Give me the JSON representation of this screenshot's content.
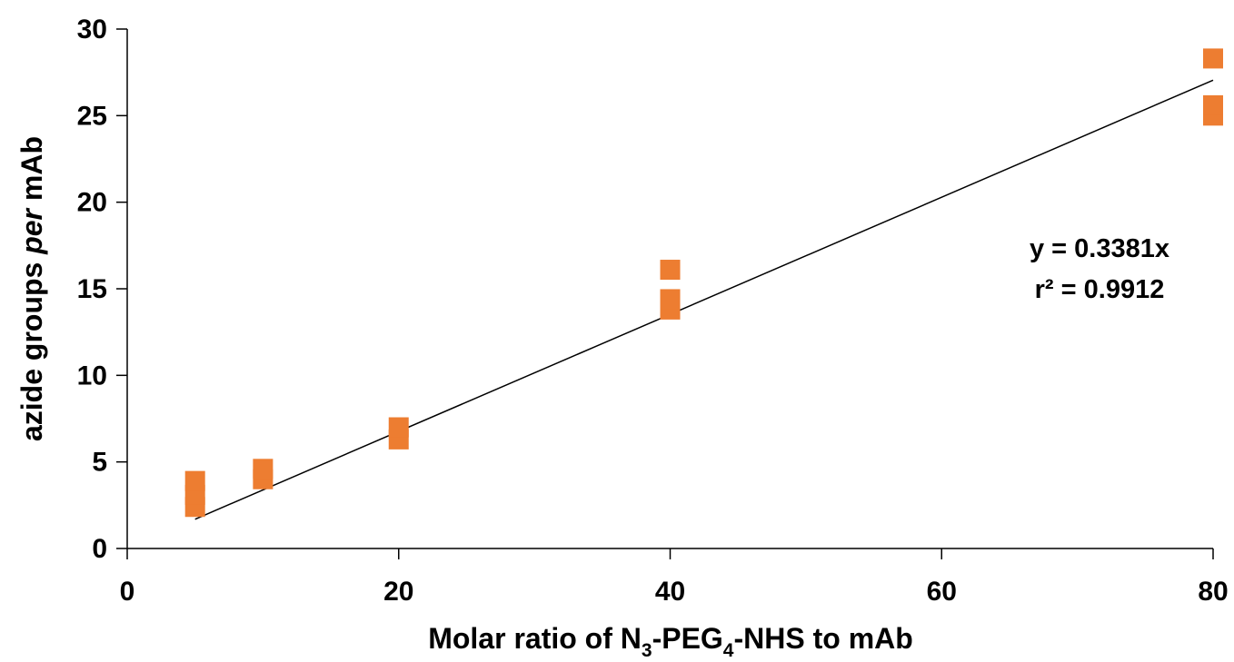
{
  "chart_data": {
    "type": "scatter",
    "title": "",
    "xlabel_parts": [
      "Molar ratio of N",
      "3",
      "-PEG",
      "4",
      "-NHS to mAb"
    ],
    "ylabel_parts": [
      "azide groups ",
      "per",
      " mAb"
    ],
    "xlim": [
      0,
      80
    ],
    "ylim": [
      0,
      30
    ],
    "x_ticks": [
      "0",
      "20",
      "40",
      "60",
      "80"
    ],
    "y_ticks": [
      "0",
      "5",
      "10",
      "15",
      "20",
      "25",
      "30"
    ],
    "grid": false,
    "legend": "none",
    "marker_color": "#ED7D31",
    "line_color": "#000000",
    "points": [
      {
        "x": 5,
        "y": 2.4
      },
      {
        "x": 5,
        "y": 3.1
      },
      {
        "x": 5,
        "y": 3.9
      },
      {
        "x": 10,
        "y": 4.0
      },
      {
        "x": 10,
        "y": 4.6
      },
      {
        "x": 20,
        "y": 6.3
      },
      {
        "x": 20,
        "y": 7.0
      },
      {
        "x": 40,
        "y": 13.8
      },
      {
        "x": 40,
        "y": 14.4
      },
      {
        "x": 40,
        "y": 16.1
      },
      {
        "x": 80,
        "y": 25.0
      },
      {
        "x": 80,
        "y": 25.6
      },
      {
        "x": 80,
        "y": 28.3
      }
    ],
    "trendline": {
      "slope": 0.3381,
      "x_range": [
        5,
        80
      ]
    },
    "annotations": [
      "y = 0.3381x",
      "r² = 0.9912"
    ]
  }
}
